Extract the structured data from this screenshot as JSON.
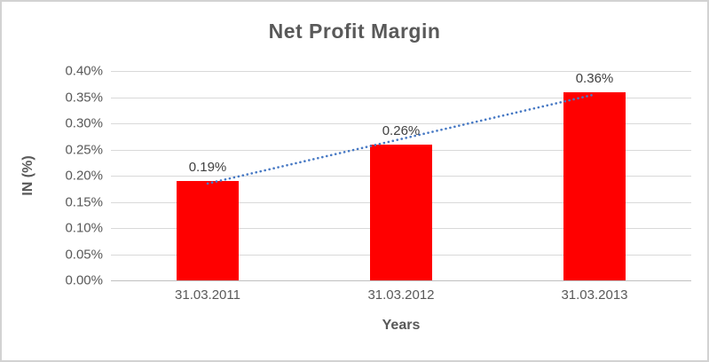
{
  "chart_data": {
    "type": "bar",
    "title": "Net Profit Margin",
    "categories": [
      "31.03.2011",
      "31.03.2012",
      "31.03.2013"
    ],
    "values": [
      0.19,
      0.26,
      0.36
    ],
    "data_labels": [
      "0.19%",
      "0.26%",
      "0.36%"
    ],
    "xlabel": "Years",
    "ylabel": "IN (%)",
    "ylim": [
      0,
      0.4
    ],
    "ytick_step": 0.05,
    "ytick_labels": [
      "0.00%",
      "0.05%",
      "0.10%",
      "0.15%",
      "0.20%",
      "0.25%",
      "0.30%",
      "0.35%",
      "0.40%"
    ],
    "grid": true,
    "legend": "none",
    "trendline": {
      "type": "linear",
      "style": "dotted"
    },
    "colors": {
      "bar": "#ff0000",
      "trendline": "#4779c4",
      "gridline": "#d9d9d9",
      "axis_line": "#bfbfbf",
      "title_text": "#595959",
      "tick_text": "#595959",
      "data_label_text": "#404040",
      "chart_border": "#d2d2d2"
    }
  }
}
